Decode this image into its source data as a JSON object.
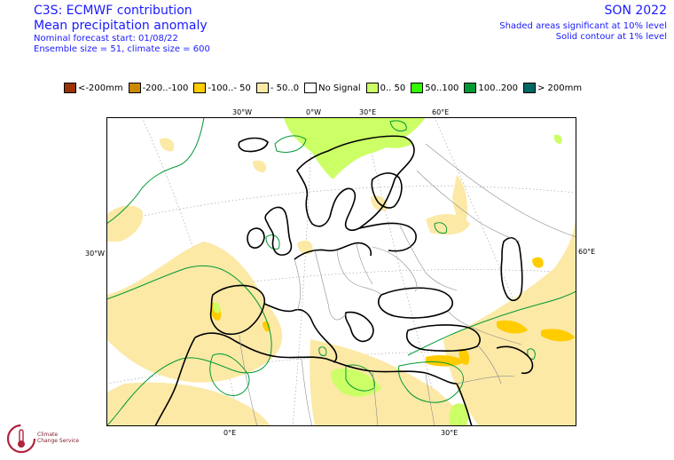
{
  "header": {
    "title": "C3S: ECMWF contribution",
    "subtitle": "Mean precipitation anomaly",
    "forecast_start": "Nominal forecast start: 01/08/22",
    "ensemble": "Ensemble size = 51, climate size = 600",
    "season": "SON 2022",
    "shaded_note": "Shaded areas significant at 10% level",
    "contour_note": "Solid contour at 1% level"
  },
  "legend": [
    {
      "label": "<-200mm",
      "color": "#993300"
    },
    {
      "label": "-200..-100",
      "color": "#cc8800"
    },
    {
      "label": "-100..- 50",
      "color": "#ffcc00"
    },
    {
      "label": "- 50..0",
      "color": "#fce9a6"
    },
    {
      "label": "No Signal",
      "color": "#ffffff"
    },
    {
      "label": "0.. 50",
      "color": "#ccff66"
    },
    {
      "label": "50..100",
      "color": "#33ff00"
    },
    {
      "label": "100..200",
      "color": "#009933"
    },
    {
      "label": "> 200mm",
      "color": "#006666"
    }
  ],
  "axes": {
    "top": [
      "30°W",
      "0°W",
      "30°E",
      "60°E"
    ],
    "left": "30°W",
    "right": "60°E",
    "bottom": [
      "0°E",
      "30°E"
    ]
  },
  "logo": {
    "name": "climate-change-service-logo",
    "line1": "Climate",
    "line2": "Change Service"
  }
}
